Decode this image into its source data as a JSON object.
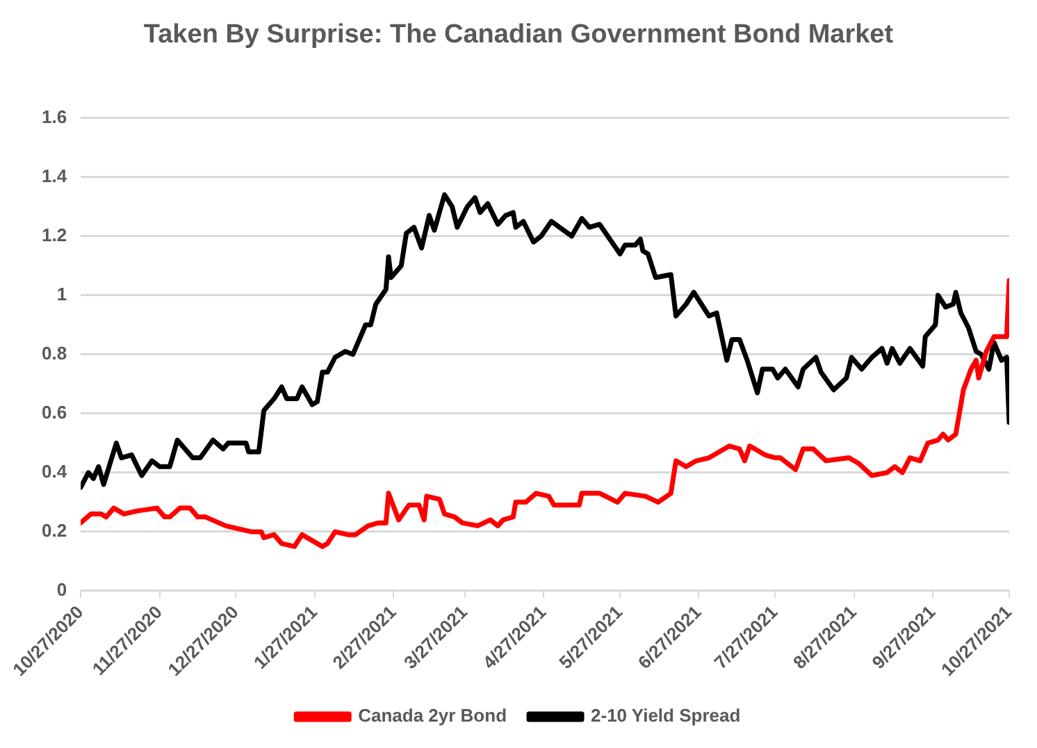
{
  "chart_data": {
    "type": "line",
    "title": "Taken By Surprise: The Canadian Government Bond Market",
    "legend": "bottom",
    "grid": "y",
    "marker": "none",
    "line_style": "solid",
    "xlim": [
      "2020-10-27",
      "2021-10-27"
    ],
    "xticks": [
      {
        "value": "2020-10-27",
        "label": "10/27/2020"
      },
      {
        "value": "2020-11-27",
        "label": "11/27/2020"
      },
      {
        "value": "2020-12-27",
        "label": "12/27/2020"
      },
      {
        "value": "2021-01-27",
        "label": "1/27/2021"
      },
      {
        "value": "2021-02-27",
        "label": "2/27/2021"
      },
      {
        "value": "2021-03-27",
        "label": "3/27/2021"
      },
      {
        "value": "2021-04-27",
        "label": "4/27/2021"
      },
      {
        "value": "2021-05-27",
        "label": "5/27/2021"
      },
      {
        "value": "2021-06-27",
        "label": "6/27/2021"
      },
      {
        "value": "2021-07-27",
        "label": "7/27/2021"
      },
      {
        "value": "2021-08-27",
        "label": "8/27/2021"
      },
      {
        "value": "2021-09-27",
        "label": "9/27/2021"
      },
      {
        "value": "2021-10-27",
        "label": "10/27/2021"
      }
    ],
    "ylim": [
      0,
      1.6
    ],
    "yticks": [
      0,
      0.2,
      0.4,
      0.6,
      0.8,
      1,
      1.2,
      1.4,
      1.6
    ],
    "series": [
      {
        "name": "Canada 2yr Bond",
        "color": "#ff0000",
        "x": [
          "2020-10-27",
          "2020-10-31",
          "2020-11-04",
          "2020-11-06",
          "2020-11-09",
          "2020-11-13",
          "2020-11-18",
          "2020-11-26",
          "2020-11-29",
          "2020-12-01",
          "2020-12-05",
          "2020-12-09",
          "2020-12-12",
          "2020-12-15",
          "2020-12-23",
          "2021-01-02",
          "2021-01-06",
          "2021-01-07",
          "2021-01-11",
          "2021-01-14",
          "2021-01-19",
          "2021-01-22",
          "2021-01-26",
          "2021-01-30",
          "2021-02-01",
          "2021-02-04",
          "2021-02-09",
          "2021-02-12",
          "2021-02-17",
          "2021-02-21",
          "2021-02-24",
          "2021-02-25",
          "2021-03-01",
          "2021-03-05",
          "2021-03-09",
          "2021-03-11",
          "2021-03-12",
          "2021-03-17",
          "2021-03-19",
          "2021-03-23",
          "2021-03-26",
          "2021-04-01",
          "2021-04-06",
          "2021-04-09",
          "2021-04-11",
          "2021-04-15",
          "2021-04-16",
          "2021-04-20",
          "2021-04-24",
          "2021-04-29",
          "2021-05-01",
          "2021-05-06",
          "2021-05-11",
          "2021-05-12",
          "2021-05-19",
          "2021-05-26",
          "2021-05-29",
          "2021-06-06",
          "2021-06-11",
          "2021-06-16",
          "2021-06-18",
          "2021-06-22",
          "2021-06-26",
          "2021-07-01",
          "2021-07-05",
          "2021-07-09",
          "2021-07-13",
          "2021-07-15",
          "2021-07-17",
          "2021-07-23",
          "2021-07-27",
          "2021-07-29",
          "2021-08-04",
          "2021-08-07",
          "2021-08-11",
          "2021-08-16",
          "2021-08-25",
          "2021-08-29",
          "2021-09-03",
          "2021-09-09",
          "2021-09-12",
          "2021-09-15",
          "2021-09-18",
          "2021-09-22",
          "2021-09-25",
          "2021-09-29",
          "2021-10-01",
          "2021-10-03",
          "2021-10-06",
          "2021-10-09",
          "2021-10-12",
          "2021-10-14",
          "2021-10-15",
          "2021-10-18",
          "2021-10-21",
          "2021-10-26",
          "2021-10-27"
        ],
        "values": [
          0.23,
          0.26,
          0.26,
          0.25,
          0.28,
          0.26,
          0.27,
          0.28,
          0.25,
          0.25,
          0.28,
          0.28,
          0.25,
          0.25,
          0.22,
          0.2,
          0.2,
          0.18,
          0.19,
          0.16,
          0.15,
          0.19,
          0.17,
          0.15,
          0.16,
          0.2,
          0.19,
          0.19,
          0.22,
          0.23,
          0.23,
          0.33,
          0.24,
          0.29,
          0.29,
          0.24,
          0.32,
          0.31,
          0.26,
          0.25,
          0.23,
          0.22,
          0.24,
          0.22,
          0.24,
          0.25,
          0.3,
          0.3,
          0.33,
          0.32,
          0.29,
          0.29,
          0.29,
          0.33,
          0.33,
          0.3,
          0.33,
          0.32,
          0.3,
          0.33,
          0.44,
          0.42,
          0.44,
          0.45,
          0.47,
          0.49,
          0.48,
          0.44,
          0.49,
          0.46,
          0.45,
          0.45,
          0.41,
          0.48,
          0.48,
          0.44,
          0.45,
          0.43,
          0.39,
          0.4,
          0.42,
          0.4,
          0.45,
          0.44,
          0.5,
          0.51,
          0.53,
          0.51,
          0.53,
          0.68,
          0.75,
          0.78,
          0.72,
          0.81,
          0.86,
          0.86,
          1.05
        ]
      },
      {
        "name": "2-10 Yield Spread",
        "color": "#000000",
        "x": [
          "2020-10-27",
          "2020-10-30",
          "2020-11-01",
          "2020-11-03",
          "2020-11-05",
          "2020-11-10",
          "2020-11-12",
          "2020-11-16",
          "2020-11-20",
          "2020-11-24",
          "2020-11-27",
          "2020-12-01",
          "2020-12-04",
          "2020-12-10",
          "2020-12-13",
          "2020-12-18",
          "2020-12-22",
          "2020-12-24",
          "2020-12-31",
          "2021-01-01",
          "2021-01-05",
          "2021-01-07",
          "2021-01-11",
          "2021-01-14",
          "2021-01-16",
          "2021-01-20",
          "2021-01-22",
          "2021-01-26",
          "2021-01-28",
          "2021-01-30",
          "2021-02-01",
          "2021-02-04",
          "2021-02-08",
          "2021-02-11",
          "2021-02-16",
          "2021-02-18",
          "2021-02-20",
          "2021-02-24",
          "2021-02-25",
          "2021-02-26",
          "2021-03-02",
          "2021-03-04",
          "2021-03-07",
          "2021-03-10",
          "2021-03-13",
          "2021-03-15",
          "2021-03-19",
          "2021-03-22",
          "2021-03-24",
          "2021-03-28",
          "2021-03-31",
          "2021-04-02",
          "2021-04-05",
          "2021-04-09",
          "2021-04-12",
          "2021-04-15",
          "2021-04-16",
          "2021-04-19",
          "2021-04-23",
          "2021-04-26",
          "2021-04-30",
          "2021-05-08",
          "2021-05-12",
          "2021-05-15",
          "2021-05-19",
          "2021-05-27",
          "2021-05-29",
          "2021-06-02",
          "2021-06-04",
          "2021-06-05",
          "2021-06-07",
          "2021-06-10",
          "2021-06-16",
          "2021-06-18",
          "2021-06-22",
          "2021-06-25",
          "2021-06-28",
          "2021-07-01",
          "2021-07-04",
          "2021-07-08",
          "2021-07-10",
          "2021-07-13",
          "2021-07-16",
          "2021-07-20",
          "2021-07-22",
          "2021-07-26",
          "2021-07-28",
          "2021-07-31",
          "2021-08-05",
          "2021-08-07",
          "2021-08-12",
          "2021-08-14",
          "2021-08-19",
          "2021-08-24",
          "2021-08-26",
          "2021-08-30",
          "2021-09-03",
          "2021-09-07",
          "2021-09-09",
          "2021-09-11",
          "2021-09-14",
          "2021-09-18",
          "2021-09-23",
          "2021-09-24",
          "2021-09-28",
          "2021-09-29",
          "2021-10-02",
          "2021-10-05",
          "2021-10-06",
          "2021-10-08",
          "2021-10-11",
          "2021-10-14",
          "2021-10-16",
          "2021-10-19",
          "2021-10-21",
          "2021-10-24",
          "2021-10-26",
          "2021-10-27"
        ],
        "values": [
          0.35,
          0.4,
          0.38,
          0.42,
          0.36,
          0.5,
          0.45,
          0.46,
          0.39,
          0.44,
          0.42,
          0.42,
          0.51,
          0.45,
          0.45,
          0.51,
          0.48,
          0.5,
          0.5,
          0.47,
          0.47,
          0.61,
          0.65,
          0.69,
          0.65,
          0.65,
          0.69,
          0.63,
          0.64,
          0.74,
          0.74,
          0.79,
          0.81,
          0.8,
          0.9,
          0.9,
          0.97,
          1.02,
          1.13,
          1.06,
          1.1,
          1.21,
          1.23,
          1.16,
          1.27,
          1.22,
          1.34,
          1.3,
          1.23,
          1.3,
          1.33,
          1.28,
          1.31,
          1.24,
          1.27,
          1.28,
          1.23,
          1.25,
          1.18,
          1.2,
          1.25,
          1.2,
          1.26,
          1.23,
          1.24,
          1.14,
          1.17,
          1.17,
          1.19,
          1.15,
          1.14,
          1.06,
          1.07,
          0.93,
          0.97,
          1.01,
          0.97,
          0.93,
          0.94,
          0.78,
          0.85,
          0.85,
          0.78,
          0.67,
          0.75,
          0.75,
          0.72,
          0.75,
          0.69,
          0.75,
          0.79,
          0.74,
          0.68,
          0.72,
          0.79,
          0.75,
          0.79,
          0.82,
          0.77,
          0.82,
          0.77,
          0.82,
          0.76,
          0.86,
          0.9,
          1.0,
          0.96,
          0.97,
          1.01,
          0.94,
          0.89,
          0.81,
          0.8,
          0.75,
          0.84,
          0.78,
          0.79,
          0.57
        ]
      }
    ]
  }
}
